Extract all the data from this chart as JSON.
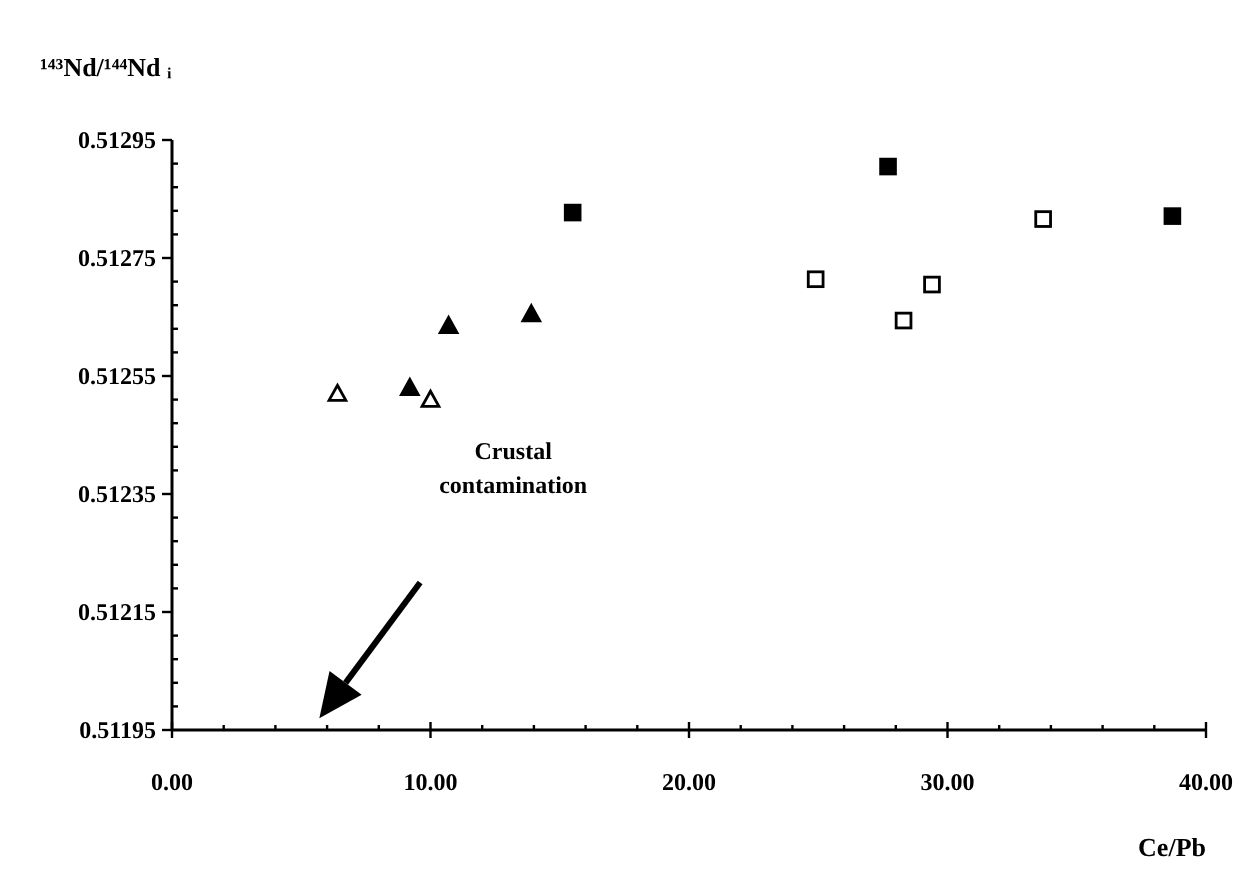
{
  "chart_data": {
    "type": "scatter",
    "ylabel": "¹⁴³Nd/¹⁴⁴Nd ᵢ",
    "xlabel": "Ce/Pb",
    "xlim": [
      0,
      40
    ],
    "ylim": [
      0.51195,
      0.51295
    ],
    "xticks": [
      {
        "value": 0,
        "label": "0.00"
      },
      {
        "value": 2,
        "label": null
      },
      {
        "value": 4,
        "label": null
      },
      {
        "value": 6,
        "label": null
      },
      {
        "value": 8,
        "label": null
      },
      {
        "value": 10,
        "label": "10.00"
      },
      {
        "value": 12,
        "label": null
      },
      {
        "value": 14,
        "label": null
      },
      {
        "value": 16,
        "label": null
      },
      {
        "value": 18,
        "label": null
      },
      {
        "value": 20,
        "label": "20.00"
      },
      {
        "value": 22,
        "label": null
      },
      {
        "value": 24,
        "label": null
      },
      {
        "value": 26,
        "label": null
      },
      {
        "value": 28,
        "label": null
      },
      {
        "value": 30,
        "label": "30.00"
      },
      {
        "value": 32,
        "label": null
      },
      {
        "value": 34,
        "label": null
      },
      {
        "value": 36,
        "label": null
      },
      {
        "value": 38,
        "label": null
      },
      {
        "value": 40,
        "label": "40.00"
      }
    ],
    "yticks": [
      0.51195,
      {
        "value": 0.51199,
        "label": null
      },
      {
        "value": 0.51203,
        "label": null
      },
      {
        "value": 0.51207,
        "label": null
      },
      {
        "value": 0.51211,
        "label": null
      },
      0.51215,
      {
        "value": 0.51219,
        "label": null
      },
      {
        "value": 0.51223,
        "label": null
      },
      {
        "value": 0.51227,
        "label": null
      },
      {
        "value": 0.51231,
        "label": null
      },
      0.51235,
      {
        "value": 0.51239,
        "label": null
      },
      {
        "value": 0.51243,
        "label": null
      },
      {
        "value": 0.51247,
        "label": null
      },
      {
        "value": 0.51251,
        "label": null
      },
      0.51255,
      {
        "value": 0.51259,
        "label": null
      },
      {
        "value": 0.51263,
        "label": null
      },
      {
        "value": 0.51267,
        "label": null
      },
      {
        "value": 0.51271,
        "label": null
      },
      0.51275,
      {
        "value": 0.51279,
        "label": null
      },
      {
        "value": 0.51283,
        "label": null
      },
      {
        "value": 0.51287,
        "label": null
      },
      {
        "value": 0.51291,
        "label": null
      },
      0.51295
    ],
    "grid": false,
    "series": [
      {
        "marker": "triangle",
        "color": "#ffffff",
        "x": [
          6.4,
          10.0
        ],
        "values": [
          0.51252,
          0.51251
        ]
      },
      {
        "marker": "triangle",
        "color": "#000000",
        "x": [
          9.2,
          10.7,
          13.9
        ],
        "values": [
          0.51253,
          0.512635,
          0.512655
        ]
      },
      {
        "marker": "square",
        "color": "#000000",
        "x": [
          15.5,
          27.7,
          38.7
        ],
        "values": [
          0.512827,
          0.512905,
          0.512821
        ]
      },
      {
        "marker": "square",
        "color": "#ffffff",
        "x": [
          24.9,
          28.3,
          29.4,
          33.7
        ],
        "values": [
          0.512714,
          0.512644,
          0.512705,
          0.512816
        ]
      }
    ],
    "annotations": [
      "Crustal contamination"
    ]
  }
}
